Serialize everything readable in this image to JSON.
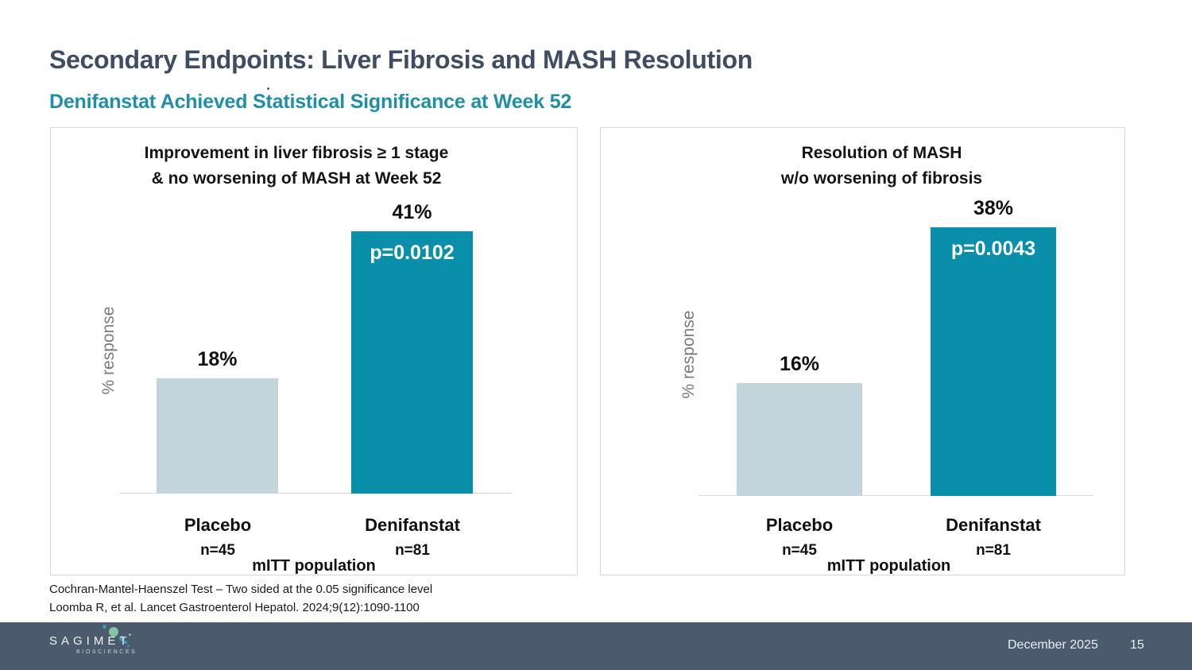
{
  "slide": {
    "title": "Secondary Endpoints: Liver Fibrosis and MASH Resolution",
    "subtitle": "Denifanstat Achieved Statistical Significance at Week 52",
    "footnotes": [
      "Cochran-Mantel-Haenszel Test – Two sided at the 0.05 significance level",
      "Loomba R, et al. Lancet Gastroenterol Hepatol. 2024;9(12):1090-1100"
    ],
    "footer": {
      "logo_text": "SAGIMET",
      "logo_subtext": "BIOSCIENCES",
      "date": "December 2025",
      "page_number": "15"
    }
  },
  "colors": {
    "title_text": "#3E4D63",
    "subtitle_text": "#1F8FA8",
    "denifanstat_bar": "#0A8FAB",
    "placebo_bar": "#C2D5DD",
    "p_value_text": "#FFFFFF",
    "footer_bar": "#4C5A6D"
  },
  "chart_data": [
    {
      "type": "bar",
      "title_lines": [
        "Improvement in liver fibrosis ≥ 1 stage",
        "& no worsening of MASH at Week 52"
      ],
      "ylabel": "% response",
      "xlabel": "mITT population",
      "categories": [
        "Placebo",
        "Denifanstat"
      ],
      "ns": [
        "n=45",
        "n=81"
      ],
      "values": [
        18,
        41
      ],
      "value_labels": [
        "18%",
        "41%"
      ],
      "p_value": "p=0.0102",
      "ylim": [
        0,
        50
      ],
      "grid": false,
      "legend": "none"
    },
    {
      "type": "bar",
      "title_lines": [
        "Resolution of MASH",
        "w/o worsening of fibrosis"
      ],
      "ylabel": "% response",
      "xlabel": "mITT population",
      "categories": [
        "Placebo",
        "Denifanstat"
      ],
      "ns": [
        "n=45",
        "n=81"
      ],
      "values": [
        16,
        38
      ],
      "value_labels": [
        "16%",
        "38%"
      ],
      "p_value": "p=0.0043",
      "ylim": [
        0,
        50
      ],
      "grid": false,
      "legend": "none"
    }
  ]
}
